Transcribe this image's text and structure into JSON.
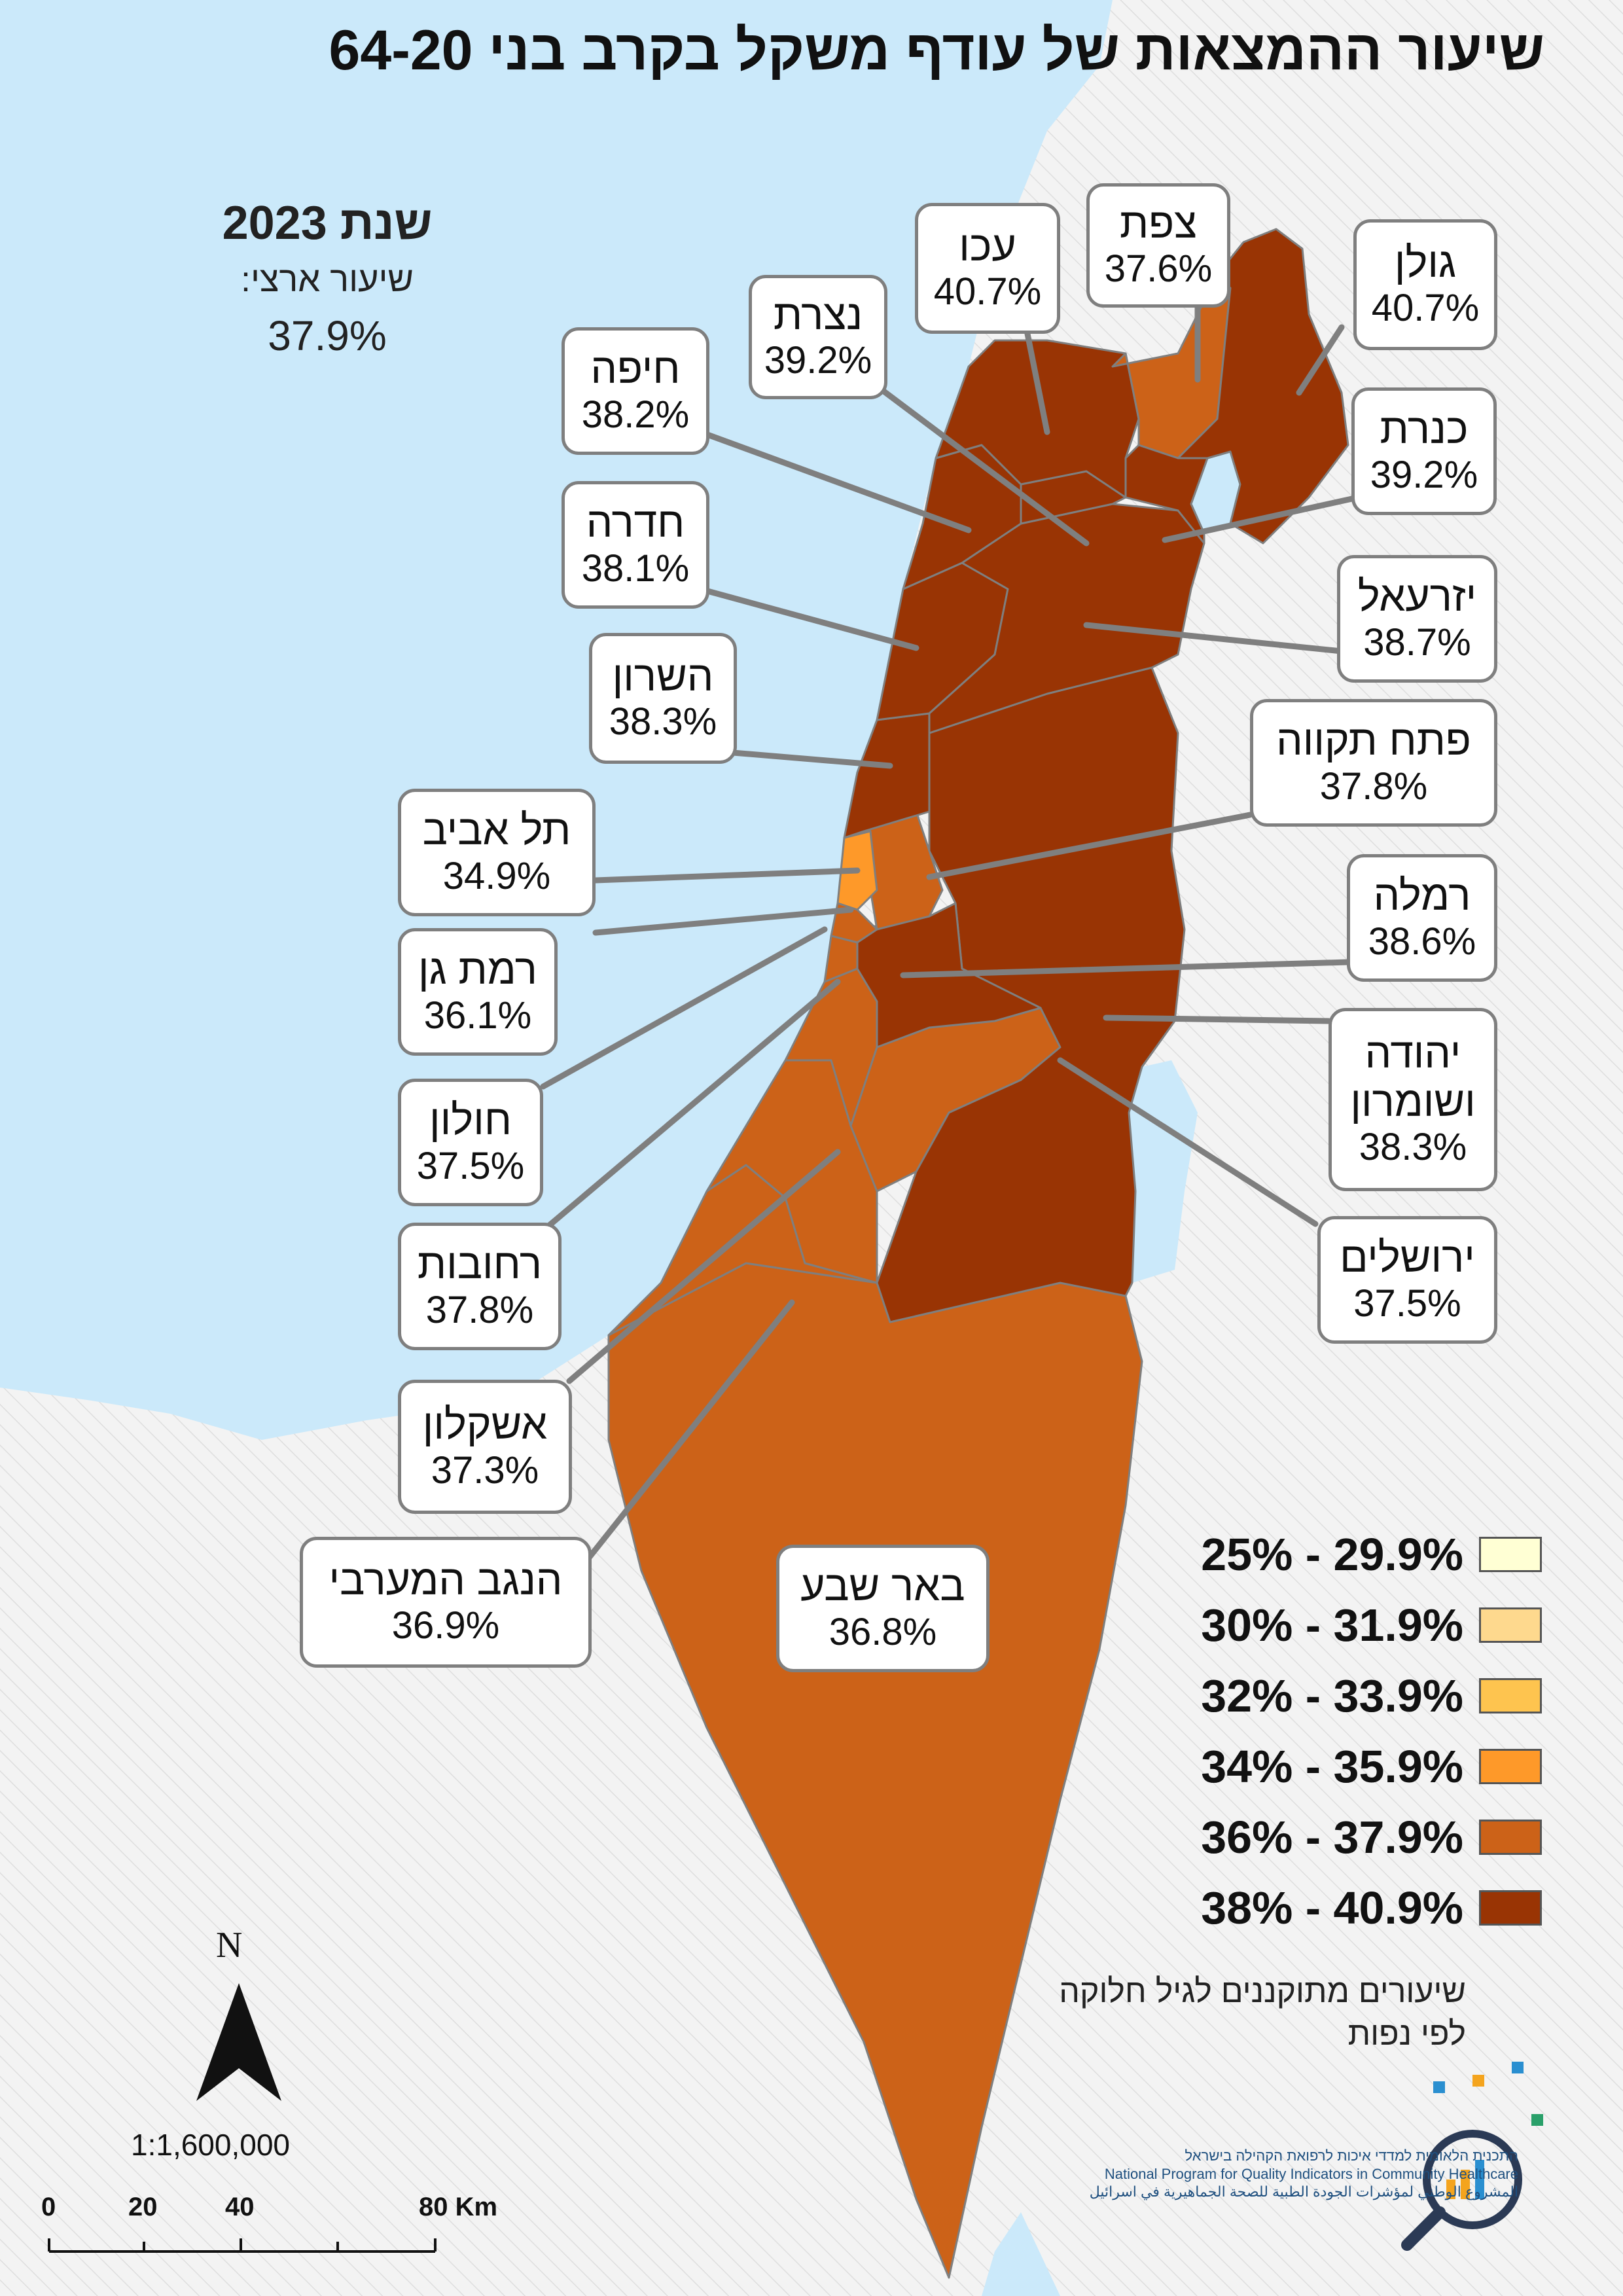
{
  "title": "שיעור ההמצאות של עודף משקל בקרב בני 64-20",
  "year_label": "שנת 2023",
  "national_label": "שיעור ארצי:",
  "national_value": "37.9%",
  "regions": [
    {
      "id": "golan",
      "name": "גולן",
      "value": "40.7%"
    },
    {
      "id": "tsfat",
      "name": "צפת",
      "value": "37.6%"
    },
    {
      "id": "ako",
      "name": "עכו",
      "value": "40.7%"
    },
    {
      "id": "natsrat",
      "name": "נצרת",
      "value": "39.2%"
    },
    {
      "id": "haifa",
      "name": "חיפה",
      "value": "38.2%"
    },
    {
      "id": "kinneret",
      "name": "כנרת",
      "value": "39.2%"
    },
    {
      "id": "hadera",
      "name": "חדרה",
      "value": "38.1%"
    },
    {
      "id": "yizreel",
      "name": "יזרעאל",
      "value": "38.7%"
    },
    {
      "id": "sharon",
      "name": "השרון",
      "value": "38.3%"
    },
    {
      "id": "petah_tikva",
      "name": "פתח תקווה",
      "value": "37.8%"
    },
    {
      "id": "tel_aviv",
      "name": "תל אביב",
      "value": "34.9%"
    },
    {
      "id": "ramla",
      "name": "רמלה",
      "value": "38.6%"
    },
    {
      "id": "ramat_gan",
      "name": "רמת גן",
      "value": "36.1%"
    },
    {
      "id": "yehuda",
      "name": "יהודה ושומרון",
      "value": "38.3%"
    },
    {
      "id": "holon",
      "name": "חולון",
      "value": "37.5%"
    },
    {
      "id": "jerusalem",
      "name": "ירושלים",
      "value": "37.5%"
    },
    {
      "id": "rehovot",
      "name": "רחובות",
      "value": "37.8%"
    },
    {
      "id": "ashkelon",
      "name": "אשקלון",
      "value": "37.3%"
    },
    {
      "id": "negev_west",
      "name": "הנגב המערבי",
      "value": "36.9%"
    },
    {
      "id": "beer_sheva",
      "name": "באר שבע",
      "value": "36.8%"
    }
  ],
  "legend": [
    {
      "label": "25% - 29.9%",
      "color": "#ffffd4"
    },
    {
      "label": "30% - 31.9%",
      "color": "#fed98e"
    },
    {
      "label": "32% - 33.9%",
      "color": "#fec44f"
    },
    {
      "label": "34% - 35.9%",
      "color": "#fe9929"
    },
    {
      "label": "36% - 37.9%",
      "color": "#cc6218"
    },
    {
      "label": "38% - 40.9%",
      "color": "#993404"
    }
  ],
  "note": "שיעורים מתוקננים לגיל חלוקה לפי נפות",
  "north": "N",
  "scale_ratio": "1:1,600,000",
  "scale_labels": [
    "0",
    "20",
    "40",
    "80 Km"
  ],
  "org_lines": [
    "התכנית הלאומית למדדי איכות לרפואת הקהילה בישראל",
    "National Program for Quality Indicators in Community Healthcare",
    "المشروع الوطني لمؤشرات الجودة الطبية للصحة الجماهيرية في اسرائيل"
  ],
  "colors": {
    "sea": "#cbe9fa",
    "land_outside": "#f2f2f2",
    "border": "#7f7f7f"
  }
}
